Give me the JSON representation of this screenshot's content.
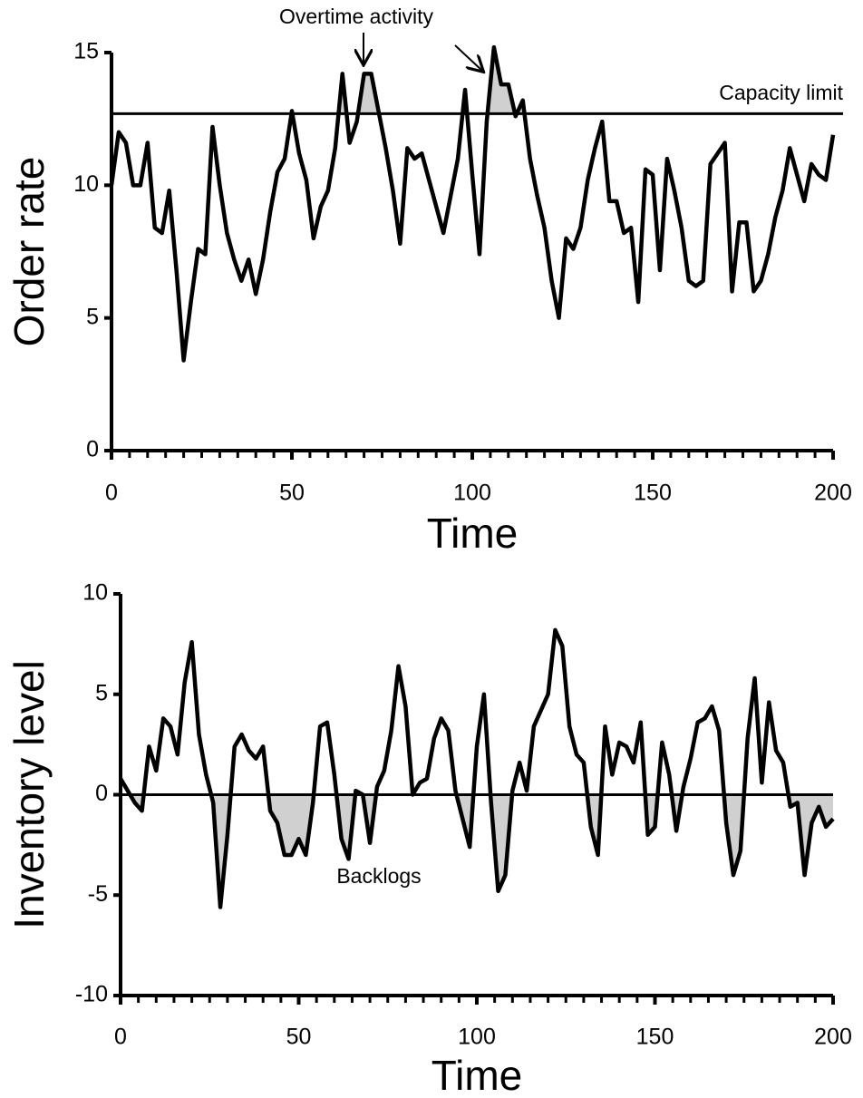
{
  "chart_data": [
    {
      "type": "line",
      "xlabel": "Time",
      "ylabel": "Order rate",
      "x": [
        0,
        2,
        4,
        6,
        8,
        10,
        12,
        14,
        16,
        18,
        20,
        22,
        24,
        26,
        28,
        30,
        32,
        34,
        36,
        38,
        40,
        42,
        44,
        46,
        48,
        50,
        52,
        54,
        56,
        58,
        60,
        62,
        64,
        66,
        68,
        70,
        72,
        74,
        76,
        78,
        80,
        82,
        84,
        86,
        88,
        90,
        92,
        94,
        96,
        98,
        100,
        102,
        104,
        106,
        108,
        110,
        112,
        114,
        116,
        118,
        120,
        122,
        124,
        126,
        128,
        130,
        132,
        134,
        136,
        138,
        140,
        142,
        144,
        146,
        148,
        150,
        152,
        154,
        156,
        158,
        160,
        162,
        164,
        166,
        168,
        170,
        172,
        174,
        176,
        178,
        180,
        182,
        184,
        186,
        188,
        190,
        192,
        194,
        196,
        198,
        200
      ],
      "series": [
        {
          "color": "#000000",
          "values": [
            10,
            12,
            11.6,
            10,
            10,
            11.6,
            8.4,
            8.2,
            9.8,
            6.8,
            3.4,
            5.6,
            7.6,
            7.4,
            12.2,
            10,
            8.2,
            7.2,
            6.4,
            7.2,
            5.9,
            7.2,
            9,
            10.5,
            11,
            12.8,
            11.2,
            10.2,
            8,
            9.2,
            9.8,
            11.4,
            14.2,
            11.6,
            12.4,
            14.2,
            14.2,
            12.8,
            11.4,
            9.8,
            7.8,
            11.4,
            11,
            11.2,
            10.2,
            9.2,
            8.2,
            9.6,
            11,
            13.6,
            10.4,
            7.4,
            12.4,
            15.2,
            13.8,
            13.8,
            12.6,
            13.2,
            11,
            9.6,
            8.4,
            6.4,
            5,
            8,
            7.6,
            8.4,
            10.2,
            11.4,
            12.4,
            9.4,
            9.4,
            8.2,
            8.4,
            5.6,
            10.6,
            10.4,
            6.8,
            11,
            9.8,
            8.4,
            6.4,
            6.2,
            6.4,
            10.8,
            11.2,
            11.6,
            6,
            8.6,
            8.6,
            6,
            6.4,
            7.4,
            8.8,
            9.8,
            11.4,
            10.4,
            9.4,
            10.8,
            10.4,
            10.2,
            11.9
          ]
        }
      ],
      "xlim": [
        0,
        200
      ],
      "ylim": [
        0,
        15
      ],
      "xticks": [
        0,
        50,
        100,
        150,
        200
      ],
      "yticks": [
        0,
        5,
        10,
        15
      ],
      "reference_line": 12.7,
      "fill_color": "#d0d0d0",
      "fill_side": "above",
      "annotations": [
        "Overtime activity",
        "Capacity limit"
      ]
    },
    {
      "type": "line",
      "xlabel": "Time",
      "ylabel": "Inventory level",
      "x": [
        0,
        2,
        4,
        6,
        8,
        10,
        12,
        14,
        16,
        18,
        20,
        22,
        24,
        26,
        28,
        30,
        32,
        34,
        36,
        38,
        40,
        42,
        44,
        46,
        48,
        50,
        52,
        54,
        56,
        58,
        60,
        62,
        64,
        66,
        68,
        70,
        72,
        74,
        76,
        78,
        80,
        82,
        84,
        86,
        88,
        90,
        92,
        94,
        96,
        98,
        100,
        102,
        104,
        106,
        108,
        110,
        112,
        114,
        116,
        118,
        120,
        122,
        124,
        126,
        128,
        130,
        132,
        134,
        136,
        138,
        140,
        142,
        144,
        146,
        148,
        150,
        152,
        154,
        156,
        158,
        160,
        162,
        164,
        166,
        168,
        170,
        172,
        174,
        176,
        178,
        180,
        182,
        184,
        186,
        188,
        190,
        192,
        194,
        196,
        198,
        200
      ],
      "series": [
        {
          "color": "#000000",
          "values": [
            0.8,
            0.2,
            -0.4,
            -0.8,
            2.4,
            1.2,
            3.8,
            3.4,
            2,
            5.6,
            7.6,
            3,
            1,
            -0.4,
            -5.6,
            -2,
            2.4,
            3,
            2.2,
            1.8,
            2.4,
            -0.8,
            -1.4,
            -3,
            -3,
            -2.2,
            -3,
            -0.4,
            3.4,
            3.6,
            1,
            -2.2,
            -3.2,
            0.2,
            0,
            -2.4,
            0.4,
            1.2,
            3.2,
            6.4,
            4.4,
            0,
            0.6,
            0.8,
            2.8,
            3.8,
            3.2,
            0.2,
            -1.2,
            -2.6,
            2.4,
            5,
            -0.4,
            -4.8,
            -4,
            0.2,
            1.6,
            0.2,
            3.4,
            4.2,
            5,
            8.2,
            7.4,
            3.4,
            2,
            1.6,
            -1.6,
            -3,
            3.4,
            1,
            2.6,
            2.4,
            1.6,
            3.6,
            -2,
            -1.6,
            2.6,
            1,
            -1.8,
            0.4,
            1.8,
            3.6,
            3.8,
            4.4,
            3.2,
            -1.4,
            -4,
            -2.8,
            2.8,
            5.8,
            0.6,
            4.6,
            2.2,
            1.6,
            -0.6,
            -0.4,
            -4,
            -1.4,
            -0.6,
            -1.6,
            -1.2
          ]
        }
      ],
      "xlim": [
        0,
        200
      ],
      "ylim": [
        -10,
        10
      ],
      "xticks": [
        0,
        50,
        100,
        150,
        200
      ],
      "yticks": [
        -10,
        -5,
        0,
        5,
        10
      ],
      "reference_line": 0,
      "fill_color": "#d0d0d0",
      "fill_side": "below",
      "annotations": [
        "Backlogs"
      ]
    }
  ]
}
